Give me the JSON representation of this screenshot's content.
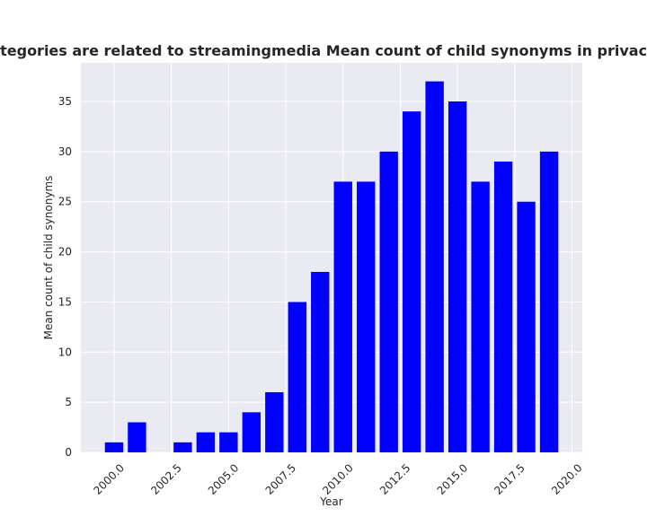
{
  "chart_data": {
    "type": "bar",
    "title": "Mean count of child synonyms in privacy policies by year when categories are related to streamingmedia Mean count of child synonyms in privacy policies by year when categories are related to streamingmedia",
    "xlabel": "Year",
    "ylabel": "Mean count of child synonyms",
    "x": [
      2000,
      2001,
      2003,
      2004,
      2005,
      2006,
      2007,
      2008,
      2009,
      2010,
      2011,
      2012,
      2013,
      2014,
      2015,
      2016,
      2017,
      2018,
      2019
    ],
    "values": [
      1,
      3,
      1,
      2,
      2,
      4,
      6,
      15,
      18,
      27,
      27,
      30,
      34,
      37,
      35,
      27,
      29,
      25,
      30
    ],
    "xticks": [
      "2000.0",
      "2002.5",
      "2005.0",
      "2007.5",
      "2010.0",
      "2012.5",
      "2015.0",
      "2017.5",
      "2020.0"
    ],
    "yticks": [
      "0",
      "5",
      "10",
      "15",
      "20",
      "25",
      "30",
      "35"
    ],
    "xlim": [
      1998.55,
      2020.45
    ],
    "ylim": [
      0,
      38.85
    ],
    "bar_color": "#0000ff",
    "background": "#eaeaf2",
    "grid": true
  }
}
